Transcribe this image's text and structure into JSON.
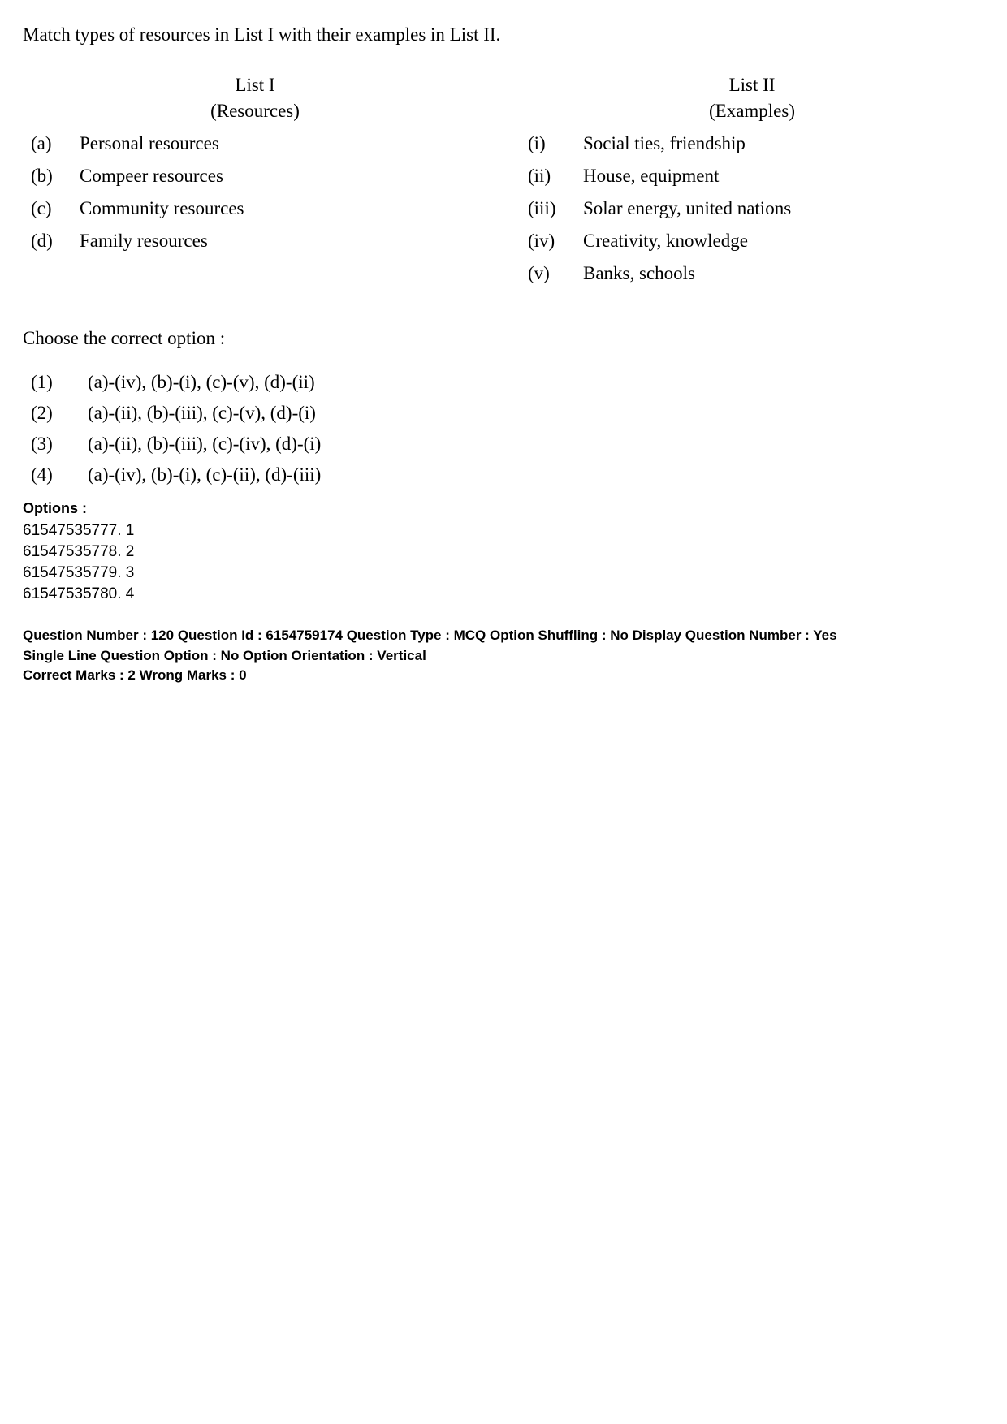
{
  "question": {
    "prompt": "Match types of resources in List I with their examples in List II.",
    "list1": {
      "title": "List I",
      "subtitle": "(Resources)",
      "items": [
        {
          "label": "(a)",
          "text": "Personal resources"
        },
        {
          "label": "(b)",
          "text": "Compeer resources"
        },
        {
          "label": "(c)",
          "text": "Community resources"
        },
        {
          "label": "(d)",
          "text": "Family resources"
        }
      ]
    },
    "list2": {
      "title": "List II",
      "subtitle": "(Examples)",
      "items": [
        {
          "label": "(i)",
          "text": "Social ties, friendship"
        },
        {
          "label": "(ii)",
          "text": "House, equipment"
        },
        {
          "label": "(iii)",
          "text": "Solar energy, united nations"
        },
        {
          "label": "(iv)",
          "text": "Creativity, knowledge"
        },
        {
          "label": "(v)",
          "text": "Banks, schools"
        }
      ]
    },
    "choose_text": "Choose the correct option :",
    "answer_options": [
      {
        "label": "(1)",
        "text": "(a)-(iv), (b)-(i), (c)-(v), (d)-(ii)"
      },
      {
        "label": "(2)",
        "text": "(a)-(ii), (b)-(iii), (c)-(v), (d)-(i)"
      },
      {
        "label": "(3)",
        "text": "(a)-(ii), (b)-(iii), (c)-(iv), (d)-(i)"
      },
      {
        "label": "(4)",
        "text": "(a)-(iv), (b)-(i), (c)-(ii), (d)-(iii)"
      }
    ],
    "options_heading": "Options :",
    "option_codes": [
      "61547535777. 1",
      "61547535778. 2",
      "61547535779. 3",
      "61547535780. 4"
    ]
  },
  "meta": {
    "line1": "Question Number : 120  Question Id : 6154759174  Question Type : MCQ  Option Shuffling : No  Display Question Number : Yes",
    "line2": "Single Line Question Option : No  Option Orientation : Vertical",
    "line3": "Correct Marks : 2  Wrong Marks : 0"
  }
}
